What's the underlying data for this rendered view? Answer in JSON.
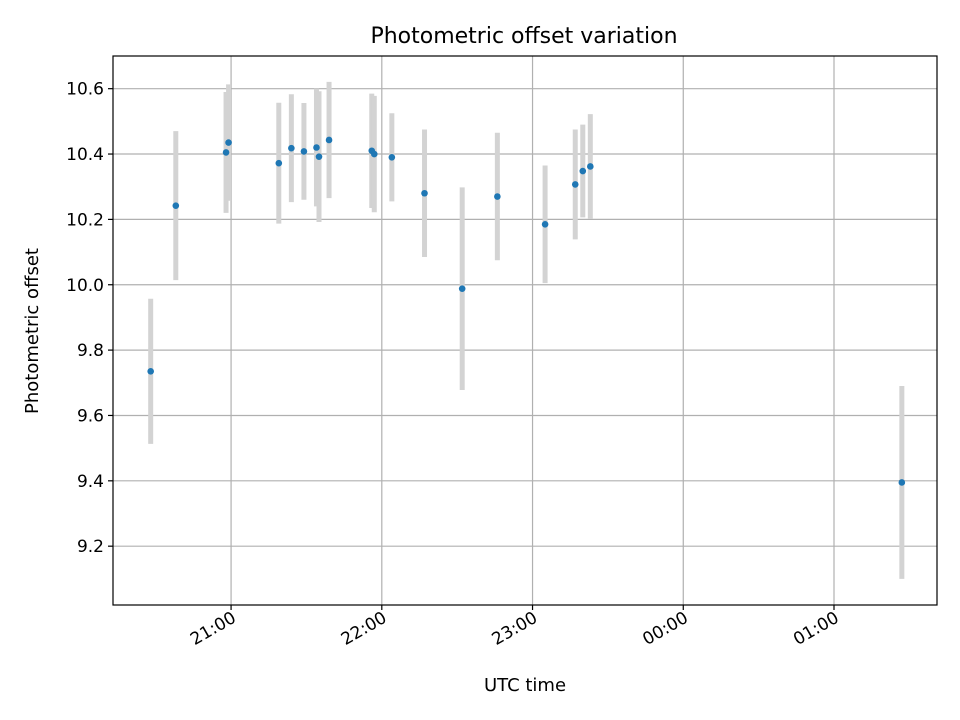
{
  "chart_data": {
    "type": "scatter",
    "title": "Photometric offset variation",
    "xlabel": "UTC time",
    "ylabel": "Photometric offset",
    "grid": true,
    "legend": "none",
    "xlim": [
      "20:13",
      "01:41"
    ],
    "ylim": [
      9.02,
      10.7
    ],
    "x_ticks": [
      "21:00",
      "22:00",
      "23:00",
      "00:00",
      "01:00"
    ],
    "y_ticks": [
      9.2,
      9.4,
      9.6,
      9.8,
      10.0,
      10.2,
      10.4,
      10.6
    ],
    "colors": {
      "point": "#1f77b4",
      "errorbar": "#d3d3d3",
      "grid": "#b0b0b0"
    },
    "points": [
      {
        "x": "20:28",
        "y": 9.735,
        "err": 0.222
      },
      {
        "x": "20:38",
        "y": 10.242,
        "err": 0.228
      },
      {
        "x": "20:58",
        "y": 10.405,
        "err": 0.185
      },
      {
        "x": "20:59",
        "y": 10.435,
        "err": 0.178
      },
      {
        "x": "21:19",
        "y": 10.372,
        "err": 0.185
      },
      {
        "x": "21:24",
        "y": 10.418,
        "err": 0.165
      },
      {
        "x": "21:29",
        "y": 10.408,
        "err": 0.148
      },
      {
        "x": "21:34",
        "y": 10.42,
        "err": 0.18
      },
      {
        "x": "21:35",
        "y": 10.392,
        "err": 0.2
      },
      {
        "x": "21:39",
        "y": 10.443,
        "err": 0.178
      },
      {
        "x": "21:56",
        "y": 10.41,
        "err": 0.175
      },
      {
        "x": "21:57",
        "y": 10.4,
        "err": 0.178
      },
      {
        "x": "22:04",
        "y": 10.39,
        "err": 0.135
      },
      {
        "x": "22:17",
        "y": 10.28,
        "err": 0.195
      },
      {
        "x": "22:32",
        "y": 9.988,
        "err": 0.31
      },
      {
        "x": "22:46",
        "y": 10.27,
        "err": 0.195
      },
      {
        "x": "23:05",
        "y": 10.185,
        "err": 0.18
      },
      {
        "x": "23:17",
        "y": 10.307,
        "err": 0.168
      },
      {
        "x": "23:20",
        "y": 10.348,
        "err": 0.142
      },
      {
        "x": "23:23",
        "y": 10.362,
        "err": 0.16
      },
      {
        "x": "01:27",
        "y": 9.395,
        "err": 0.295
      }
    ]
  }
}
